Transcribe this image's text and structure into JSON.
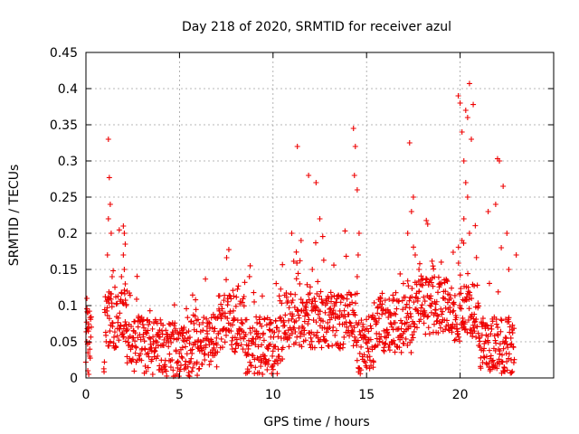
{
  "chart_data": {
    "type": "scatter",
    "title": "Day 218 of 2020, SRMTID for receiver azul",
    "xlabel": "GPS time / hours",
    "ylabel": "SRMTID / TECUs",
    "xlim": [
      0,
      25
    ],
    "ylim": [
      0,
      0.45
    ],
    "xticks": [
      "0",
      "5",
      "10",
      "15",
      "20"
    ],
    "yticks": [
      "0",
      "0.05",
      "0.1",
      "0.15",
      "0.2",
      "0.25",
      "0.3",
      "0.35",
      "0.4",
      "0.45"
    ],
    "grid": true,
    "marker": "plus",
    "color": "#ee0000",
    "series": [
      {
        "name": "SRMTID",
        "x": [
          0.05,
          0.1,
          0.15,
          0.2,
          0.1,
          0.15,
          0.05,
          1.2,
          1.25,
          1.3,
          1.2,
          1.35,
          1.15,
          1.4,
          1.25,
          2.0,
          2.05,
          2.1,
          2.0,
          2.05,
          1.9,
          2.1,
          2.2,
          2.15,
          11.0,
          11.3,
          11.5,
          11.9,
          12.1,
          12.5,
          12.3,
          14.3,
          14.4,
          14.5,
          14.6,
          14.55,
          14.5,
          14.35,
          17.3,
          17.5,
          17.2,
          17.4,
          17.6,
          17.8,
          19.9,
          20.0,
          20.1,
          20.2,
          20.3,
          20.4,
          20.5,
          20.6,
          20.4,
          20.5,
          20.3,
          20.2,
          20.1,
          20.7,
          22.0,
          22.1,
          22.3,
          22.5,
          22.6,
          21.5,
          23.0,
          21.9,
          22.2
        ],
        "y": [
          0.11,
          0.09,
          0.07,
          0.03,
          0.01,
          0.005,
          0.05,
          0.33,
          0.277,
          0.24,
          0.22,
          0.2,
          0.17,
          0.14,
          0.11,
          0.21,
          0.2,
          0.185,
          0.17,
          0.15,
          0.14,
          0.13,
          0.12,
          0.1,
          0.2,
          0.32,
          0.19,
          0.28,
          0.15,
          0.22,
          0.27,
          0.345,
          0.32,
          0.26,
          0.2,
          0.17,
          0.14,
          0.28,
          0.325,
          0.25,
          0.2,
          0.23,
          0.17,
          0.15,
          0.39,
          0.38,
          0.34,
          0.3,
          0.37,
          0.36,
          0.407,
          0.33,
          0.25,
          0.2,
          0.27,
          0.22,
          0.19,
          0.378,
          0.303,
          0.3,
          0.265,
          0.2,
          0.15,
          0.23,
          0.17,
          0.24,
          0.18
        ]
      }
    ]
  }
}
